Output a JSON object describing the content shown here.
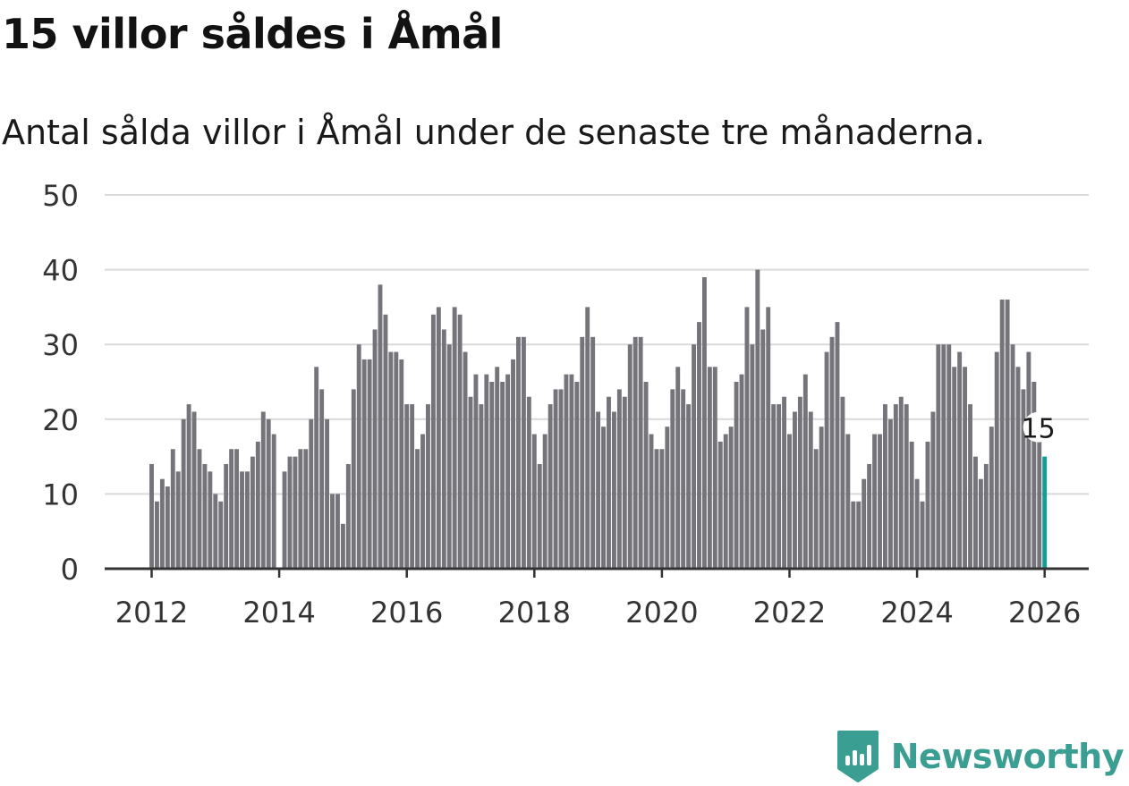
{
  "header": {
    "title": "15 villor såldes i Åmål",
    "subtitle": "Antal sålda villor i Åmål under de senaste tre månaderna."
  },
  "brand": {
    "name": "Newsworthy",
    "color": "#3b9e93"
  },
  "colors": {
    "bar": "#75747a",
    "highlight": "#139e95",
    "grid": "#d9d9d9",
    "axis": "#333333"
  },
  "chart_data": {
    "type": "bar",
    "title": "15 villor såldes i Åmål",
    "subtitle": "Antal sålda villor i Åmål under de senaste tre månaderna.",
    "xlabel": "",
    "ylabel": "",
    "ylim": [
      0,
      50
    ],
    "yticks": [
      "0",
      "10",
      "20",
      "30",
      "40",
      "50"
    ],
    "xticks": [
      "2012",
      "2014",
      "2016",
      "2018",
      "2020",
      "2022",
      "2024",
      "2026"
    ],
    "start": "2012-01",
    "frequency": "monthly",
    "grid": true,
    "values": [
      14,
      9,
      12,
      11,
      16,
      13,
      20,
      22,
      21,
      16,
      14,
      13,
      10,
      9,
      14,
      16,
      16,
      13,
      13,
      15,
      17,
      21,
      20,
      18,
      null,
      13,
      15,
      15,
      16,
      16,
      20,
      27,
      24,
      20,
      10,
      10,
      6,
      14,
      24,
      30,
      28,
      28,
      32,
      38,
      34,
      29,
      29,
      28,
      22,
      22,
      16,
      18,
      22,
      34,
      35,
      32,
      30,
      35,
      34,
      29,
      23,
      26,
      22,
      26,
      25,
      27,
      25,
      26,
      28,
      31,
      31,
      23,
      18,
      14,
      18,
      22,
      24,
      24,
      26,
      26,
      25,
      31,
      35,
      31,
      21,
      19,
      23,
      21,
      24,
      23,
      30,
      31,
      31,
      25,
      18,
      16,
      16,
      19,
      24,
      27,
      24,
      22,
      30,
      33,
      39,
      27,
      27,
      17,
      18,
      19,
      25,
      26,
      35,
      30,
      40,
      32,
      35,
      22,
      22,
      23,
      18,
      21,
      23,
      26,
      21,
      16,
      19,
      29,
      31,
      33,
      23,
      18,
      9,
      9,
      12,
      14,
      18,
      18,
      22,
      20,
      22,
      23,
      22,
      17,
      12,
      9,
      17,
      21,
      30,
      30,
      30,
      27,
      29,
      27,
      22,
      15,
      12,
      14,
      19,
      29,
      36,
      36,
      30,
      27,
      24,
      29,
      25,
      17,
      15
    ],
    "highlight": {
      "label": "15",
      "value": 15
    }
  }
}
